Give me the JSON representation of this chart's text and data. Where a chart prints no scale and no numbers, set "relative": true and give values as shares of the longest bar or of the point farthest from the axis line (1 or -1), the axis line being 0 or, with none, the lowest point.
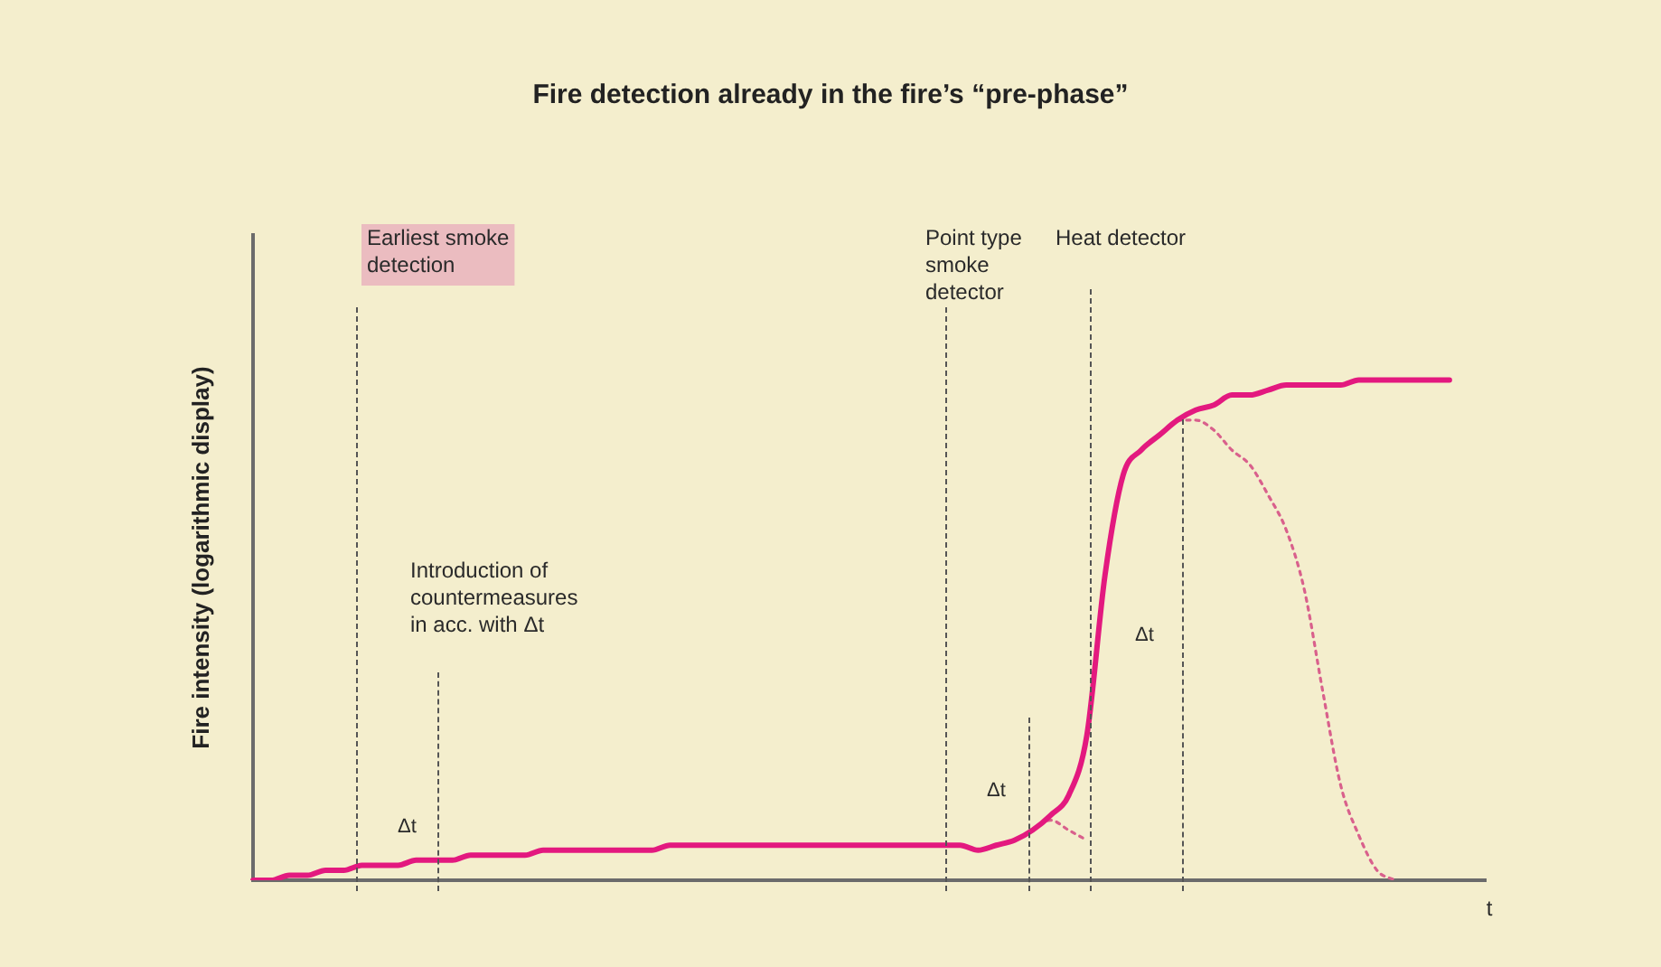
{
  "chart_data": {
    "type": "line",
    "title": "Fire detection already in the fire’s “pre-phase”",
    "xlabel": "t",
    "ylabel": "Fire intensity (logarithmic display)",
    "relative": true,
    "grid": false,
    "legend": false,
    "marker": "none",
    "categories": [
      null,
      null,
      null,
      null,
      null,
      null,
      null,
      null,
      null,
      null,
      null,
      null,
      null,
      null,
      null,
      null,
      null,
      null,
      null,
      null,
      null,
      null,
      null,
      null,
      null,
      null,
      null,
      null,
      null,
      null,
      null,
      null,
      null,
      null,
      null,
      null,
      null,
      null,
      null,
      null,
      null,
      null,
      null,
      null,
      null,
      null,
      null,
      null,
      null,
      null,
      null,
      null,
      null,
      null,
      null,
      null,
      null,
      null,
      null,
      null,
      null,
      null,
      null,
      null,
      null,
      null,
      null,
      null,
      null
    ],
    "series": [
      {
        "color": "#e3197f",
        "line_style": "solid",
        "values": [
          0,
          0.0,
          0.01,
          0.01,
          0.02,
          0.02,
          0.03,
          0.03,
          0.03,
          0.04,
          0.04,
          0.04,
          0.05,
          0.05,
          0.05,
          0.05,
          0.06,
          0.06,
          0.06,
          0.06,
          0.06,
          0.06,
          0.06,
          0.07,
          0.07,
          0.07,
          0.07,
          0.07,
          0.07,
          0.07,
          0.07,
          0.07,
          0.07,
          0.07,
          0.07,
          0.07,
          0.07,
          0.07,
          0.07,
          0.07,
          0.06,
          0.07,
          0.08,
          0.1,
          0.13,
          0.17,
          0.29,
          0.61,
          0.81,
          0.86,
          0.89,
          0.92,
          0.94,
          0.95,
          0.97,
          0.97,
          0.98,
          0.99,
          0.99,
          0.99,
          0.99,
          1.0,
          1.0,
          1.0,
          1.0,
          1.0,
          1.0,
          null,
          null
        ]
      },
      {
        "color": "#d9608c",
        "line_style": "dotted",
        "values": [
          null,
          null,
          null,
          null,
          null,
          null,
          null,
          null,
          null,
          null,
          null,
          null,
          null,
          null,
          null,
          null,
          null,
          null,
          null,
          null,
          null,
          null,
          null,
          null,
          null,
          null,
          null,
          null,
          null,
          null,
          null,
          null,
          null,
          null,
          null,
          null,
          null,
          null,
          null,
          null,
          null,
          null,
          null,
          0.1,
          0.12,
          0.1,
          0.08,
          null,
          null,
          null,
          null,
          null,
          null,
          null,
          null,
          null,
          null,
          null,
          null,
          null,
          null,
          null,
          null,
          null,
          null,
          null,
          null,
          null,
          null
        ]
      },
      {
        "color": "#d9608c",
        "line_style": "dotted",
        "values": [
          null,
          null,
          null,
          null,
          null,
          null,
          null,
          null,
          null,
          null,
          null,
          null,
          null,
          null,
          null,
          null,
          null,
          null,
          null,
          null,
          null,
          null,
          null,
          null,
          null,
          null,
          null,
          null,
          null,
          null,
          null,
          null,
          null,
          null,
          null,
          null,
          null,
          null,
          null,
          null,
          null,
          null,
          null,
          null,
          null,
          null,
          null,
          null,
          null,
          null,
          null,
          0.92,
          0.92,
          0.9,
          0.86,
          0.83,
          0.77,
          0.7,
          0.58,
          0.38,
          0.19,
          0.09,
          0.02,
          0,
          null,
          null,
          null,
          null,
          null
        ]
      }
    ],
    "annotations": [
      "Earliest smoke detection",
      "Introduction of countermeasures in acc. with Δt",
      "Point type smoke detector",
      "Heat detector",
      "Δt",
      "Δt",
      "Δt"
    ]
  }
}
